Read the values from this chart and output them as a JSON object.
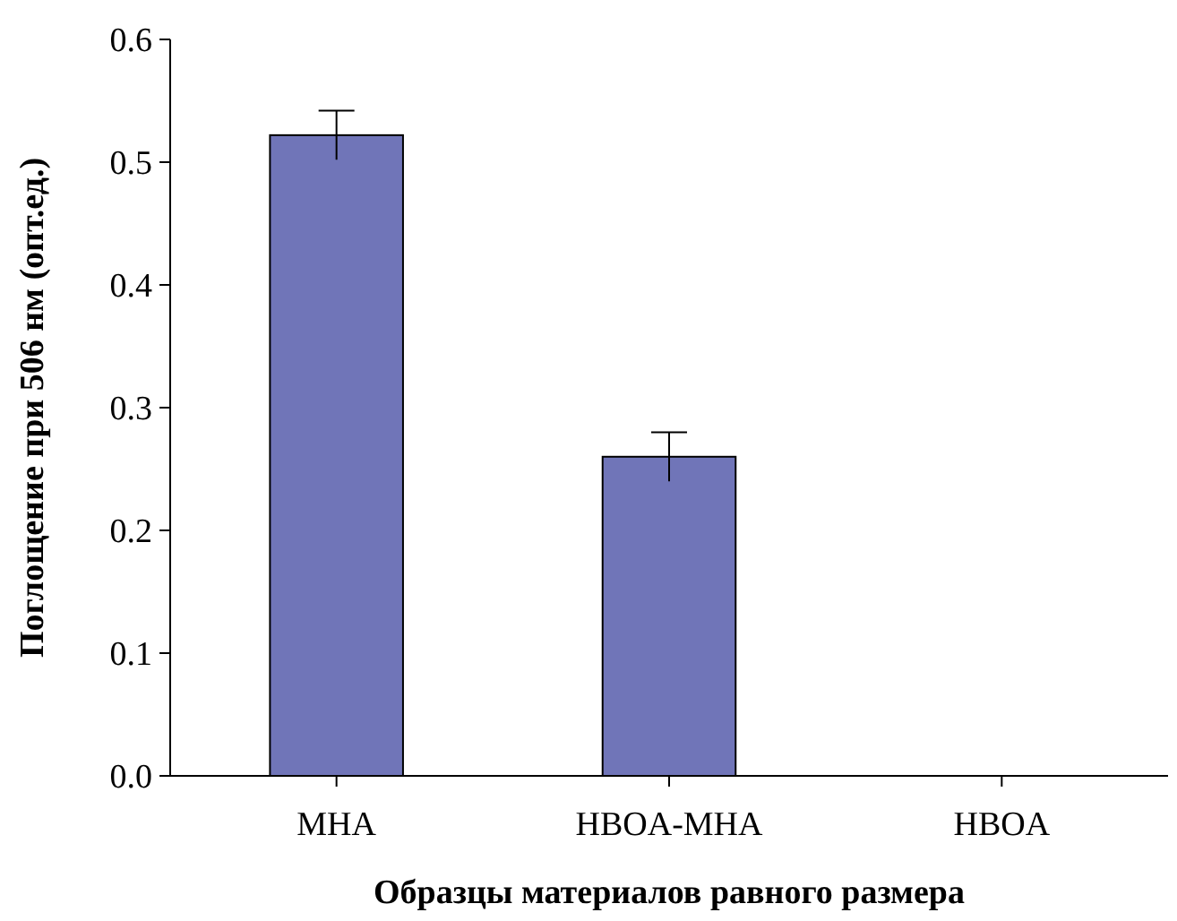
{
  "chart_data": {
    "type": "bar",
    "xlabel": "Образцы материалов равного размера",
    "ylabel": "Поглощение при 506 нм (опт.ед.)",
    "categories": [
      "MHA",
      "HBOA-MHA",
      "HBOA"
    ],
    "values": [
      0.522,
      0.26,
      0
    ],
    "errors": [
      0.02,
      0.02,
      null
    ],
    "color": "#7075b8",
    "ylim": [
      0,
      0.6
    ],
    "yticks": [
      {
        "value": 0,
        "label": "0.0"
      },
      0.1,
      0.2,
      0.3,
      0.4,
      0.5,
      0.6
    ],
    "grid": false
  }
}
